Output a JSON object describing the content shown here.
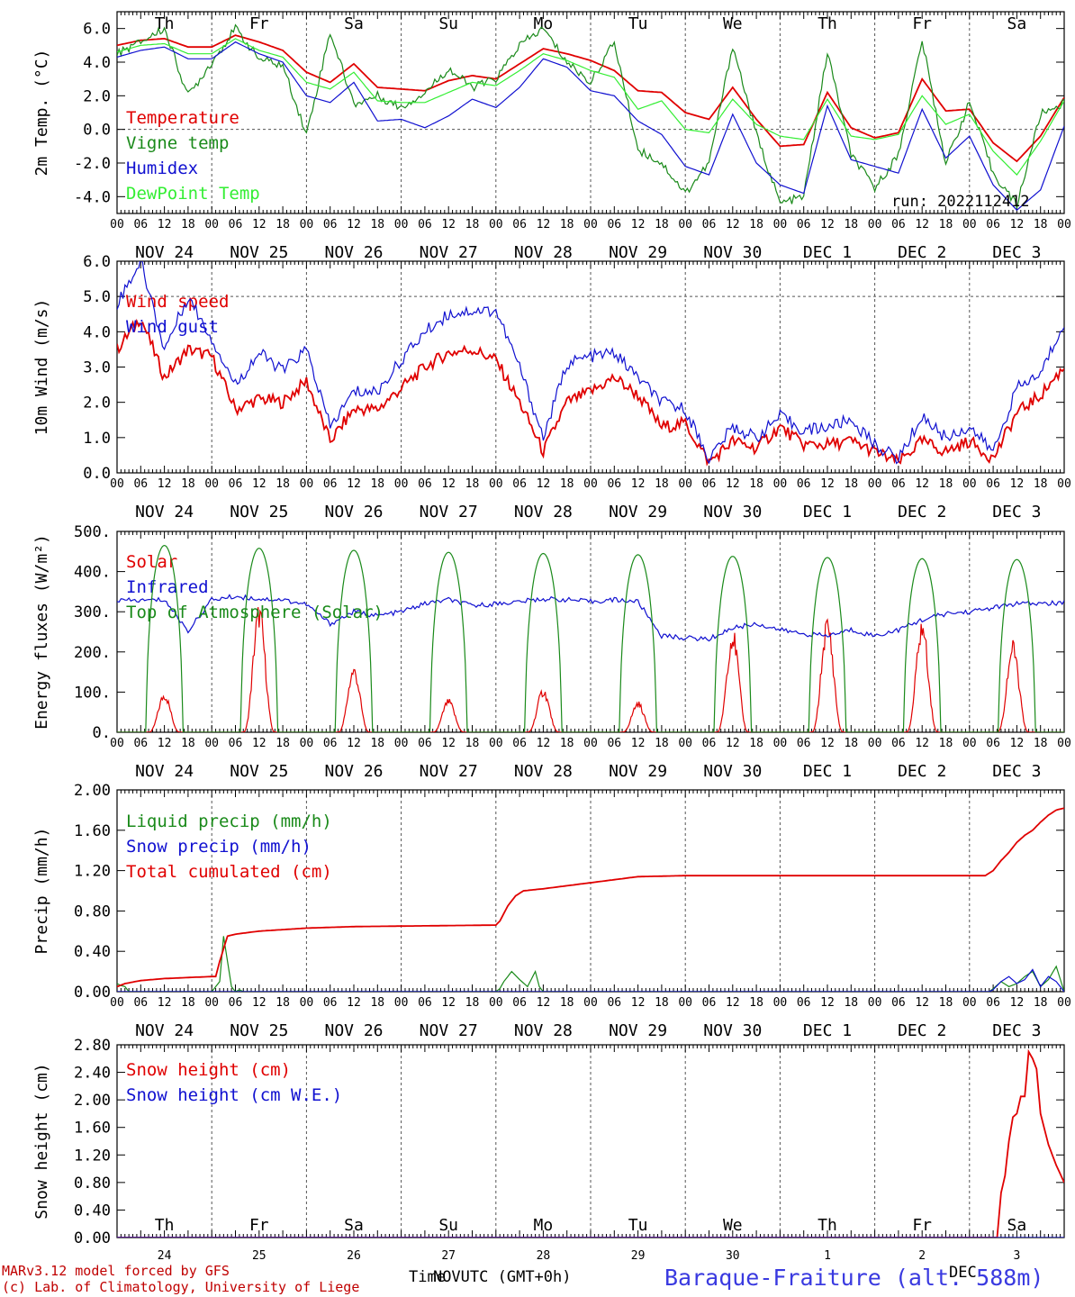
{
  "footer": {
    "model": "MARv3.12 model forced by GFS",
    "credit": "(c) Lab. of Climatology, University of Liege",
    "time_axis_1": "Time",
    "time_axis_2": "NOV",
    "time_axis_3": "UTC (GMT+0h)",
    "station": "Baraque-Fraiture (alt. 588m)",
    "station_month": "DEC"
  },
  "colors": {
    "red": "#e00000",
    "green": "#1a8a1a",
    "blue": "#1010d0",
    "lightgreen": "#33ee33",
    "grid": "#555555"
  },
  "hour_ticks": [
    "00",
    "06",
    "12",
    "18"
  ],
  "dates": [
    "NOV 24",
    "NOV 25",
    "NOV 26",
    "NOV 27",
    "NOV 28",
    "NOV 29",
    "NOV 30",
    "DEC  1",
    "DEC  2",
    "DEC  3"
  ],
  "weekdays": [
    "Th",
    "Fr",
    "Sa",
    "Su",
    "Mo",
    "Tu",
    "We",
    "Th",
    "Fr",
    "Sa"
  ],
  "weekend_days": [
    2,
    3,
    9
  ],
  "day_numbers": [
    "24",
    "25",
    "26",
    "27",
    "28",
    "29",
    "30",
    "1",
    "2",
    "3"
  ],
  "chart_data": [
    {
      "type": "line",
      "ylabel": "2m Temp. (°C)",
      "ylim": [
        -5,
        7
      ],
      "yticks": [
        "6.0",
        "4.0",
        "2.0",
        "0.0",
        "-2.0",
        "-4.0"
      ],
      "ytick_values": [
        6,
        4,
        2,
        0,
        -2,
        -4
      ],
      "ref_line": 0,
      "run_label": "run: 2022112412",
      "x_unit": "hours since NOV 24 00 UTC",
      "series": [
        {
          "name": "Temperature",
          "color": "red",
          "x": [
            0,
            6,
            12,
            18,
            24,
            30,
            36,
            42,
            48,
            54,
            60,
            66,
            72,
            78,
            84,
            90,
            96,
            102,
            108,
            114,
            120,
            126,
            132,
            138,
            144,
            150,
            156,
            162,
            168,
            174,
            180,
            186,
            192,
            198,
            204,
            210,
            216,
            222,
            228,
            234,
            240
          ],
          "values": [
            5.0,
            5.3,
            5.4,
            4.9,
            4.9,
            5.6,
            5.2,
            4.7,
            3.4,
            2.8,
            3.9,
            2.5,
            2.4,
            2.3,
            2.9,
            3.2,
            3.0,
            3.9,
            4.8,
            4.5,
            4.1,
            3.5,
            2.3,
            2.2,
            1.0,
            0.6,
            2.5,
            0.6,
            -1.0,
            -0.9,
            2.2,
            0.1,
            -0.5,
            -0.2,
            3.0,
            1.1,
            1.2,
            -0.8,
            -1.9,
            -0.4,
            1.9
          ]
        },
        {
          "name": "Vigne temp",
          "color": "green",
          "x": [
            0,
            6,
            12,
            18,
            24,
            30,
            36,
            42,
            48,
            54,
            60,
            66,
            72,
            78,
            84,
            90,
            96,
            102,
            108,
            114,
            120,
            126,
            132,
            138,
            144,
            150,
            156,
            162,
            168,
            174,
            180,
            186,
            192,
            198,
            204,
            210,
            216,
            222,
            228,
            234,
            240
          ],
          "values": [
            4.5,
            5.2,
            6.0,
            2.0,
            4.0,
            6.0,
            4.2,
            3.8,
            -0.3,
            5.8,
            1.5,
            2.0,
            1.3,
            2.2,
            3.6,
            2.5,
            3.0,
            5.0,
            6.0,
            4.0,
            2.8,
            5.2,
            -1.2,
            -2.0,
            -3.8,
            -2.0,
            5.0,
            -0.3,
            -4.4,
            -4.0,
            4.6,
            -1.5,
            -3.5,
            -1.5,
            5.3,
            -2.0,
            1.6,
            -2.6,
            -4.5,
            0.9,
            1.6
          ]
        },
        {
          "name": "Humidex",
          "color": "blue",
          "x": [
            0,
            6,
            12,
            18,
            24,
            30,
            36,
            42,
            48,
            54,
            60,
            66,
            72,
            78,
            84,
            90,
            96,
            102,
            108,
            114,
            120,
            126,
            132,
            138,
            144,
            150,
            156,
            162,
            168,
            174,
            180,
            186,
            192,
            198,
            204,
            210,
            216,
            222,
            228,
            234,
            240
          ],
          "values": [
            4.3,
            4.7,
            4.9,
            4.2,
            4.2,
            5.2,
            4.5,
            4.0,
            2.0,
            1.6,
            2.8,
            0.5,
            0.6,
            0.1,
            0.8,
            1.8,
            1.3,
            2.5,
            4.2,
            3.7,
            2.3,
            2.0,
            0.5,
            -0.3,
            -2.2,
            -2.7,
            0.9,
            -2.0,
            -3.3,
            -3.8,
            1.4,
            -1.8,
            -2.2,
            -2.6,
            1.2,
            -1.7,
            -0.4,
            -3.3,
            -4.8,
            -3.6,
            0.2
          ]
        },
        {
          "name": "DewPoint Temp",
          "color": "lightgreen",
          "x": [
            0,
            6,
            12,
            18,
            24,
            30,
            36,
            42,
            48,
            54,
            60,
            66,
            72,
            78,
            84,
            90,
            96,
            102,
            108,
            114,
            120,
            126,
            132,
            138,
            144,
            150,
            156,
            162,
            168,
            174,
            180,
            186,
            192,
            198,
            204,
            210,
            216,
            222,
            228,
            234,
            240
          ],
          "values": [
            4.6,
            5.0,
            5.1,
            4.5,
            4.5,
            5.4,
            4.7,
            4.3,
            2.8,
            2.4,
            3.4,
            1.7,
            1.6,
            1.6,
            2.2,
            2.8,
            2.6,
            3.5,
            4.5,
            4.1,
            3.5,
            3.1,
            1.2,
            1.7,
            0.0,
            -0.2,
            1.8,
            0.3,
            -0.4,
            -0.6,
            1.8,
            -0.4,
            -0.6,
            -0.3,
            2.0,
            0.3,
            0.9,
            -1.3,
            -2.7,
            -0.7,
            1.7
          ]
        }
      ]
    },
    {
      "type": "line",
      "ylabel": "10m Wind (m/s)",
      "ylim": [
        0,
        6
      ],
      "yticks": [
        "6.0",
        "5.0",
        "4.0",
        "3.0",
        "2.0",
        "1.0",
        "0.0"
      ],
      "ytick_values": [
        6,
        5,
        4,
        3,
        2,
        1,
        0
      ],
      "ref_line": 5,
      "series": [
        {
          "name": "Wind speed",
          "color": "red",
          "x": [
            0,
            6,
            12,
            18,
            24,
            30,
            36,
            42,
            48,
            54,
            60,
            66,
            72,
            78,
            84,
            90,
            96,
            102,
            108,
            114,
            120,
            126,
            132,
            138,
            144,
            150,
            156,
            162,
            168,
            174,
            180,
            186,
            192,
            198,
            204,
            210,
            216,
            222,
            228,
            234,
            240
          ],
          "values": [
            3.5,
            4.4,
            2.7,
            3.5,
            3.3,
            1.8,
            2.1,
            2.0,
            2.6,
            0.9,
            1.8,
            1.8,
            2.4,
            3.0,
            3.4,
            3.5,
            3.2,
            2.0,
            0.6,
            2.0,
            2.3,
            2.7,
            2.2,
            1.3,
            1.4,
            0.3,
            0.9,
            0.7,
            1.3,
            0.8,
            0.8,
            0.9,
            0.6,
            0.3,
            0.9,
            0.6,
            0.9,
            0.4,
            1.7,
            2.2,
            3.0
          ]
        },
        {
          "name": "Wind gust",
          "color": "blue",
          "x": [
            0,
            6,
            12,
            18,
            24,
            30,
            36,
            42,
            48,
            54,
            60,
            66,
            72,
            78,
            84,
            90,
            96,
            102,
            108,
            114,
            120,
            126,
            132,
            138,
            144,
            150,
            156,
            162,
            168,
            174,
            180,
            186,
            192,
            198,
            204,
            210,
            216,
            222,
            228,
            234,
            240
          ],
          "values": [
            4.8,
            6.0,
            3.5,
            5.0,
            3.8,
            2.5,
            3.4,
            2.9,
            3.5,
            1.3,
            2.3,
            2.3,
            3.2,
            4.0,
            4.5,
            4.6,
            4.6,
            3.0,
            1.0,
            3.1,
            3.3,
            3.4,
            2.7,
            2.0,
            1.8,
            0.4,
            1.3,
            1.0,
            1.6,
            1.2,
            1.3,
            1.5,
            0.8,
            0.4,
            1.6,
            1.0,
            1.3,
            0.6,
            2.4,
            2.8,
            4.3
          ]
        }
      ]
    },
    {
      "type": "line",
      "ylabel": "Energy fluxes (W/m²)",
      "ylim": [
        0,
        500
      ],
      "yticks": [
        "500.",
        "400.",
        "300.",
        "200.",
        "100.",
        "0."
      ],
      "ytick_values": [
        500,
        400,
        300,
        200,
        100,
        0
      ],
      "series": [
        {
          "name": "Solar",
          "color": "red",
          "peak_hours": [
            12,
            36,
            60,
            84,
            108,
            132,
            156,
            180,
            204,
            227
          ],
          "peak_values": [
            90,
            290,
            150,
            75,
            100,
            70,
            235,
            260,
            255,
            205
          ]
        },
        {
          "name": "Infrared",
          "color": "blue",
          "x": [
            0,
            6,
            12,
            18,
            24,
            30,
            36,
            42,
            48,
            54,
            60,
            66,
            72,
            78,
            84,
            90,
            96,
            102,
            108,
            114,
            120,
            126,
            132,
            138,
            144,
            150,
            156,
            162,
            168,
            174,
            180,
            186,
            192,
            198,
            204,
            210,
            216,
            222,
            228,
            234,
            240
          ],
          "values": [
            328,
            328,
            330,
            252,
            330,
            338,
            332,
            330,
            318,
            270,
            300,
            290,
            300,
            320,
            330,
            315,
            320,
            325,
            332,
            330,
            325,
            330,
            325,
            240,
            235,
            232,
            260,
            270,
            255,
            245,
            240,
            255,
            240,
            255,
            280,
            295,
            300,
            310,
            320,
            320,
            322
          ]
        },
        {
          "name": "Top of Atmosphere (Solar)",
          "color": "green",
          "peak_hours": [
            12,
            36,
            60,
            84,
            108,
            132,
            156,
            180,
            204,
            228
          ],
          "peak_values": [
            465,
            458,
            453,
            448,
            445,
            442,
            438,
            435,
            432,
            430
          ],
          "half_width_hours": 4.6
        }
      ]
    },
    {
      "type": "line",
      "ylabel": "Precip (mm/h)",
      "ylim": [
        0,
        2.0
      ],
      "yticks": [
        "2.00",
        "1.60",
        "1.20",
        "0.80",
        "0.40",
        "0.00"
      ],
      "ytick_values": [
        2.0,
        1.6,
        1.2,
        0.8,
        0.4,
        0.0
      ],
      "series": [
        {
          "name": "Liquid precip (mm/h)",
          "color": "green",
          "x": [
            0,
            1,
            2,
            3,
            24,
            26,
            27,
            28,
            29,
            30,
            31,
            32,
            48,
            96,
            97,
            98,
            100,
            102,
            104,
            106,
            107,
            108,
            120,
            221,
            222,
            224,
            226,
            228,
            230,
            232,
            234,
            236,
            238,
            240
          ],
          "values": [
            0.08,
            0.06,
            0.05,
            0.0,
            0.0,
            0.1,
            0.55,
            0.3,
            0.05,
            0.0,
            0.02,
            0.0,
            0.0,
            0.0,
            0.03,
            0.1,
            0.2,
            0.12,
            0.05,
            0.2,
            0.05,
            0.0,
            0.0,
            0.0,
            0.03,
            0.1,
            0.05,
            0.08,
            0.15,
            0.2,
            0.05,
            0.12,
            0.25,
            0.0
          ]
        },
        {
          "name": "Snow precip (mm/h)",
          "color": "blue",
          "x": [
            0,
            221,
            222,
            224,
            226,
            228,
            230,
            232,
            234,
            236,
            238,
            240
          ],
          "values": [
            0.0,
            0.0,
            0.02,
            0.1,
            0.15,
            0.08,
            0.12,
            0.22,
            0.05,
            0.15,
            0.1,
            0.0
          ]
        },
        {
          "name": "Total cumulated (cm)",
          "color": "red",
          "x": [
            0,
            2,
            6,
            12,
            18,
            24,
            25,
            26,
            28,
            30,
            36,
            48,
            60,
            72,
            84,
            96,
            97,
            99,
            101,
            103,
            108,
            114,
            120,
            126,
            132,
            144,
            156,
            168,
            180,
            192,
            204,
            216,
            220,
            222,
            224,
            226,
            228,
            230,
            232,
            234,
            236,
            238,
            240
          ],
          "values": [
            0.05,
            0.08,
            0.11,
            0.13,
            0.14,
            0.15,
            0.15,
            0.3,
            0.55,
            0.57,
            0.6,
            0.63,
            0.645,
            0.65,
            0.655,
            0.66,
            0.7,
            0.85,
            0.95,
            1.0,
            1.02,
            1.05,
            1.08,
            1.11,
            1.14,
            1.15,
            1.15,
            1.15,
            1.15,
            1.15,
            1.15,
            1.15,
            1.15,
            1.2,
            1.3,
            1.38,
            1.48,
            1.55,
            1.6,
            1.68,
            1.75,
            1.8,
            1.82
          ]
        }
      ]
    },
    {
      "type": "line",
      "ylabel": "Snow height (cm)",
      "ylim": [
        0,
        2.8
      ],
      "yticks": [
        "2.80",
        "2.40",
        "2.00",
        "1.60",
        "1.20",
        "0.80",
        "0.40",
        "0.00"
      ],
      "ytick_values": [
        2.8,
        2.4,
        2.0,
        1.6,
        1.2,
        0.8,
        0.4,
        0.0
      ],
      "series": [
        {
          "name": "Snow height (cm)",
          "color": "red",
          "x": [
            0,
            223,
            224,
            225,
            226,
            227,
            228,
            229,
            230,
            231,
            232,
            233,
            234,
            236,
            238,
            240
          ],
          "values": [
            0.0,
            0.0,
            0.65,
            0.9,
            1.4,
            1.75,
            1.8,
            2.05,
            2.05,
            2.7,
            2.6,
            2.45,
            1.8,
            1.35,
            1.05,
            0.8
          ]
        },
        {
          "name": "Snow height (cm W.E.)",
          "color": "blue",
          "x": [
            0,
            240
          ],
          "values": [
            0.0,
            0.0
          ]
        }
      ]
    }
  ]
}
